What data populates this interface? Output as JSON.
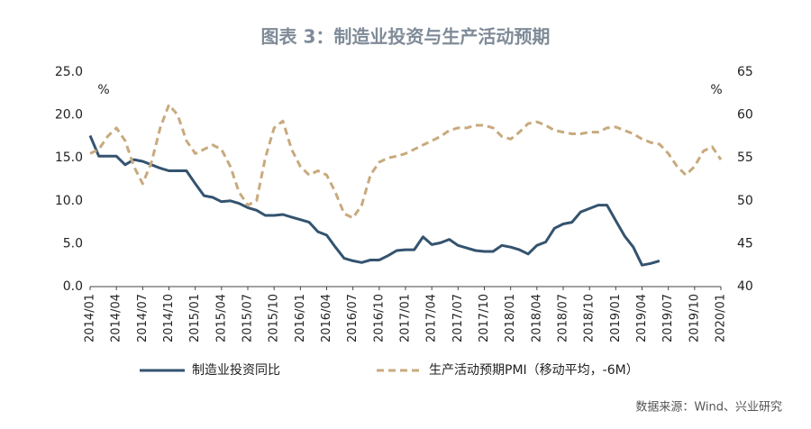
{
  "chart_data": {
    "type": "line",
    "title": "图表 3：制造业投资与生产活动预期",
    "source": "数据来源：Wind、兴业研究",
    "ylabel": "%",
    "y2label": "%",
    "categories": [
      "2014/01",
      null,
      null,
      "2014/04",
      null,
      null,
      "2014/07",
      null,
      null,
      "2014/10",
      null,
      null,
      "2015/01",
      null,
      null,
      "2015/04",
      null,
      null,
      "2015/07",
      null,
      null,
      "2015/10",
      null,
      null,
      "2016/01",
      null,
      null,
      "2016/04",
      null,
      null,
      "2016/07",
      null,
      null,
      "2016/10",
      null,
      null,
      "2017/01",
      null,
      null,
      "2017/04",
      null,
      null,
      "2017/07",
      null,
      null,
      "2017/10",
      null,
      null,
      "2018/01",
      null,
      null,
      "2018/04",
      null,
      null,
      "2018/07",
      null,
      null,
      "2018/10",
      null,
      null,
      "2019/01",
      null,
      null,
      "2019/04",
      null,
      null,
      "2019/07",
      null,
      null,
      "2019/10",
      null,
      null,
      "2020/01"
    ],
    "ylim": [
      0,
      25
    ],
    "yticks": [
      {
        "value": 0,
        "label": "0.0"
      },
      {
        "value": 5,
        "label": "5.0"
      },
      {
        "value": 10,
        "label": "10.0"
      },
      {
        "value": 15,
        "label": "15.0"
      },
      {
        "value": 20,
        "label": "20.0"
      },
      {
        "value": 25,
        "label": "25.0"
      }
    ],
    "y2lim": [
      40,
      65
    ],
    "y2ticks": [
      40,
      45,
      50,
      55,
      60,
      65
    ],
    "series": [
      {
        "name": "制造业投资同比",
        "color": "#34536f",
        "dashed": false,
        "values": [
          17.6,
          15.2,
          15.2,
          15.2,
          14.2,
          14.8,
          14.6,
          14.2,
          13.8,
          13.5,
          13.5,
          13.5,
          12.0,
          10.6,
          10.4,
          9.9,
          10.0,
          9.7,
          9.2,
          8.9,
          8.3,
          8.3,
          8.4,
          8.1,
          7.8,
          7.5,
          6.4,
          6.0,
          4.6,
          3.3,
          3.0,
          2.8,
          3.1,
          3.1,
          3.6,
          4.2,
          4.3,
          4.3,
          5.8,
          4.9,
          5.1,
          5.5,
          4.8,
          4.5,
          4.2,
          4.1,
          4.1,
          4.8,
          4.6,
          4.3,
          3.8,
          4.8,
          5.2,
          6.8,
          7.3,
          7.5,
          8.7,
          9.1,
          9.5,
          9.5,
          7.7,
          5.9,
          4.6,
          2.5,
          2.7,
          3.0,
          null,
          null,
          null,
          null,
          null,
          null,
          null
        ]
      },
      {
        "name": "生产活动预期PMI（移动平均，-6M）",
        "color": "#c8aa7e",
        "dashed": true,
        "axis": "y2",
        "values": [
          55.5,
          56,
          57.5,
          58.5,
          57,
          54,
          52,
          54.5,
          58.5,
          61.2,
          60,
          57,
          55.5,
          56,
          56.5,
          56,
          54,
          51,
          49.5,
          50,
          55,
          58.5,
          59.3,
          56,
          54,
          53,
          53.5,
          53,
          51,
          48.5,
          48,
          49.5,
          53,
          54.5,
          55,
          55.2,
          55.5,
          56,
          56.5,
          57,
          57.5,
          58.2,
          58.5,
          58.5,
          58.8,
          58.8,
          58.5,
          57.5,
          57.2,
          58,
          59,
          59.2,
          58.8,
          58.2,
          58,
          57.8,
          57.8,
          58,
          58,
          58.5,
          58.6,
          58.2,
          57.8,
          57.2,
          56.8,
          56.6,
          55.5,
          54,
          53,
          54,
          55.8,
          56.3,
          54.8
        ]
      }
    ]
  }
}
